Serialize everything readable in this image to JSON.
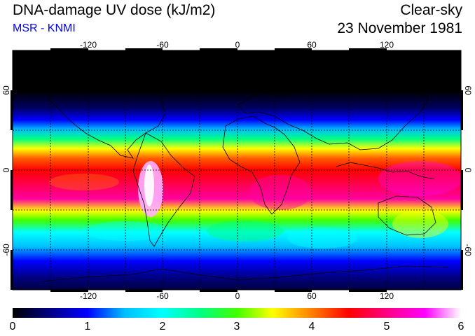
{
  "header": {
    "title": "DNA-damage UV dose (kJ/m2)",
    "subtitle": "MSR - KNMI",
    "sky_condition": "Clear-sky",
    "date": "23 November 1981"
  },
  "map": {
    "projection": "equirectangular",
    "lon_range": [
      -180,
      180
    ],
    "lat_range": [
      -90,
      90
    ],
    "graticule_spacing_degrees": 30,
    "lon_tick_labels": [
      "-120",
      "-60",
      "0",
      "60",
      "120"
    ],
    "lon_tick_values": [
      -120,
      -60,
      0,
      60,
      120
    ],
    "lat_tick_labels_left": [
      "60",
      "0",
      "-60"
    ],
    "lat_tick_labels_right": [
      "60",
      "0",
      "-60"
    ],
    "lat_tick_values": [
      60,
      0,
      -60
    ]
  },
  "colorbar": {
    "min": 0,
    "max": 6,
    "labels": [
      "0",
      "1",
      "2",
      "3",
      "4",
      "5",
      "6"
    ],
    "colors": {
      "c0": "#000000",
      "c05": "#000080",
      "c1": "#0000ff",
      "c15": "#00bfff",
      "c2": "#00ffff",
      "c25": "#00ff80",
      "c3": "#40ff00",
      "c35": "#ffff00",
      "c4": "#ff8000",
      "c45": "#ff0000",
      "c5": "#ff0080",
      "c55": "#ff00ff",
      "c6": "#ffffff"
    }
  }
}
